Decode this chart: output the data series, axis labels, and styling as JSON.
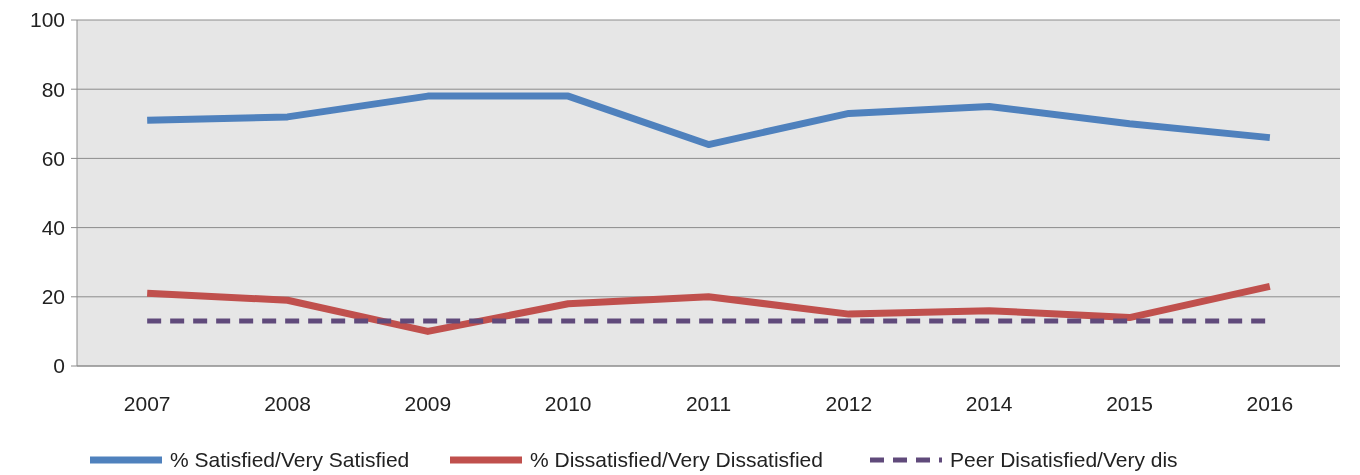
{
  "chart_data": {
    "type": "line",
    "categories": [
      "2007",
      "2008",
      "2009",
      "2010",
      "2011",
      "2012",
      "2014",
      "2015",
      "2016"
    ],
    "series": [
      {
        "name": "% Satisfied/Very Satisfied",
        "color": "#4f81bd",
        "values": [
          71,
          72,
          78,
          78,
          64,
          73,
          75,
          70,
          66
        ]
      },
      {
        "name": "% Dissatisfied/Very Dissatisfied",
        "color": "#c0504d",
        "values": [
          21,
          19,
          10,
          18,
          20,
          15,
          16,
          14,
          23
        ]
      },
      {
        "name": "Peer Disatisfied/Very dis",
        "color": "#604a7b",
        "values": [
          13,
          13,
          13,
          13,
          13,
          13,
          13,
          13,
          13
        ],
        "line_style": "dashed"
      }
    ],
    "ylim": [
      0,
      100
    ],
    "yticks": [
      0,
      20,
      40,
      60,
      80,
      100
    ],
    "grid": "y",
    "legend": "bottom",
    "marker": "none"
  }
}
